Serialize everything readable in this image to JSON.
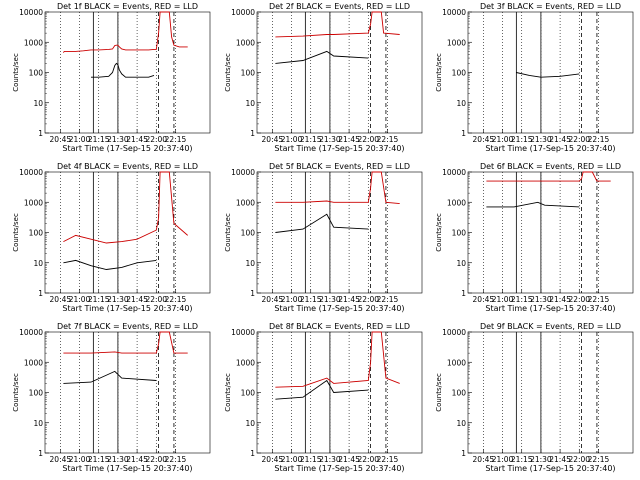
{
  "figure": {
    "xlabel": "Start Time (17-Sep-15 20:37:40)",
    "ylabel": "Counts/sec",
    "time_ticks": [
      "20:45",
      "21:00",
      "21:15",
      "21:30",
      "21:45",
      "22:00",
      "22:15"
    ],
    "y_ticks": [
      "1",
      "10",
      "100",
      "1000",
      "10000"
    ],
    "colors": {
      "events": "#000000",
      "lld": "#cc0000",
      "background": "#ffffff"
    }
  },
  "chart_data": [
    {
      "type": "line",
      "title": "Det 1f BLACK = Events, RED = LLD",
      "yscale": "log",
      "ylim": [
        1,
        10000
      ],
      "markers": {
        "E": 63,
        "F": 95,
        "S": 148,
        "E2": 168
      },
      "series": [
        {
          "values": [
            [
              24,
              450,
              null
            ],
            [
              25,
              500,
              null
            ],
            [
              40,
              500,
              null
            ],
            [
              50,
              520,
              null
            ],
            [
              60,
              560,
              70
            ],
            [
              70,
              560,
              70
            ],
            [
              83,
              580,
              75
            ],
            [
              88,
              600,
              100
            ],
            [
              91,
              780,
              170
            ],
            [
              93,
              800,
              200
            ],
            [
              95,
              800,
              180
            ],
            [
              97,
              700,
              120
            ],
            [
              100,
              600,
              90
            ],
            [
              105,
              560,
              70
            ],
            [
              120,
              560,
              70
            ],
            [
              135,
              560,
              70
            ],
            [
              142,
              580,
              80
            ],
            [
              145,
              580,
              null
            ],
            [
              148,
              2000,
              null
            ],
            [
              150,
              10000,
              null
            ],
            [
              162,
              10000,
              null
            ],
            [
              165,
              1500,
              null
            ],
            [
              168,
              800,
              null
            ],
            [
              175,
              700,
              null
            ],
            [
              186,
              700,
              null
            ]
          ]
        }
      ]
    },
    {
      "type": "line",
      "title": "Det 2f BLACK = Events, RED = LLD",
      "yscale": "log",
      "ylim": [
        1,
        10000
      ],
      "markers": {
        "E": 63,
        "F": 95,
        "S": 148,
        "E2": 168
      },
      "series": [
        {
          "values": [
            [
              24,
              1500,
              200
            ],
            [
              60,
              1600,
              250
            ],
            [
              91,
              1800,
              500
            ],
            [
              100,
              1800,
              350
            ],
            [
              145,
              2000,
              300
            ],
            [
              148,
              4000,
              null
            ],
            [
              150,
              10000,
              null
            ],
            [
              162,
              10000,
              null
            ],
            [
              165,
              2000,
              null
            ],
            [
              186,
              1800,
              null
            ]
          ]
        }
      ]
    },
    {
      "type": "line",
      "title": "Det 3f BLACK = Events, RED = LLD",
      "yscale": "log",
      "ylim": [
        1,
        10000
      ],
      "markers": {
        "E": 63,
        "F": 95,
        "S": 148,
        "E2": 168
      },
      "series": [
        {
          "values": [
            [
              63,
              null,
              100
            ],
            [
              80,
              null,
              80
            ],
            [
              95,
              null,
              70
            ],
            [
              120,
              null,
              75
            ],
            [
              145,
              null,
              90
            ]
          ]
        }
      ]
    },
    {
      "type": "line",
      "title": "Det 4f BLACK = Events, RED = LLD",
      "yscale": "log",
      "ylim": [
        1,
        10000
      ],
      "markers": {
        "E": 63,
        "F": 95,
        "S": 148,
        "E2": 168
      },
      "series": [
        {
          "values": [
            [
              24,
              50,
              10
            ],
            [
              40,
              80,
              12
            ],
            [
              60,
              60,
              8
            ],
            [
              80,
              45,
              6
            ],
            [
              100,
              50,
              7
            ],
            [
              120,
              60,
              10
            ],
            [
              145,
              120,
              12
            ],
            [
              148,
              300,
              null
            ],
            [
              150,
              10000,
              null
            ],
            [
              162,
              10000,
              null
            ],
            [
              168,
              200,
              null
            ],
            [
              186,
              80,
              null
            ]
          ]
        }
      ]
    },
    {
      "type": "line",
      "title": "Det 5f BLACK = Events, RED = LLD",
      "yscale": "log",
      "ylim": [
        1,
        10000
      ],
      "markers": {
        "E": 63,
        "F": 95,
        "S": 148,
        "E2": 168
      },
      "series": [
        {
          "values": [
            [
              24,
              1000,
              100
            ],
            [
              60,
              1000,
              130
            ],
            [
              91,
              1100,
              400
            ],
            [
              100,
              1000,
              150
            ],
            [
              145,
              1000,
              130
            ],
            [
              148,
              3000,
              null
            ],
            [
              150,
              10000,
              null
            ],
            [
              162,
              10000,
              null
            ],
            [
              168,
              1000,
              null
            ],
            [
              186,
              900,
              null
            ]
          ]
        }
      ]
    },
    {
      "type": "line",
      "title": "Det 6f BLACK = Events, RED = LLD",
      "yscale": "log",
      "ylim": [
        1,
        10000
      ],
      "markers": {
        "E": 63,
        "F": 95,
        "S": 148,
        "E2": 168
      },
      "series": [
        {
          "values": [
            [
              24,
              5000,
              700
            ],
            [
              60,
              5000,
              700
            ],
            [
              91,
              5000,
              1000
            ],
            [
              100,
              5000,
              800
            ],
            [
              145,
              5000,
              700
            ],
            [
              148,
              6000,
              null
            ],
            [
              150,
              10000,
              null
            ],
            [
              162,
              10000,
              null
            ],
            [
              168,
              5000,
              null
            ],
            [
              186,
              5000,
              null
            ]
          ]
        }
      ]
    },
    {
      "type": "line",
      "title": "Det 7f BLACK = Events, RED = LLD",
      "yscale": "log",
      "ylim": [
        1,
        10000
      ],
      "markers": {
        "E": 63,
        "F": 95,
        "S": 148,
        "E2": 168
      },
      "series": [
        {
          "values": [
            [
              24,
              2000,
              200
            ],
            [
              60,
              2000,
              220
            ],
            [
              91,
              2200,
              500
            ],
            [
              100,
              2000,
              300
            ],
            [
              145,
              2000,
              250
            ],
            [
              148,
              4000,
              null
            ],
            [
              150,
              10000,
              null
            ],
            [
              162,
              10000,
              null
            ],
            [
              168,
              2000,
              null
            ],
            [
              186,
              2000,
              null
            ]
          ]
        }
      ]
    },
    {
      "type": "line",
      "title": "Det 8f BLACK = Events, RED = LLD",
      "yscale": "log",
      "ylim": [
        1,
        10000
      ],
      "markers": {
        "E": 63,
        "F": 95,
        "S": 148,
        "E2": 168
      },
      "series": [
        {
          "values": [
            [
              24,
              150,
              60
            ],
            [
              60,
              160,
              70
            ],
            [
              91,
              300,
              250
            ],
            [
              100,
              200,
              100
            ],
            [
              145,
              250,
              120
            ],
            [
              148,
              1000,
              null
            ],
            [
              150,
              10000,
              null
            ],
            [
              162,
              10000,
              null
            ],
            [
              168,
              300,
              null
            ],
            [
              186,
              200,
              null
            ]
          ]
        }
      ]
    },
    {
      "type": "line",
      "title": "Det 9f BLACK = Events, RED = LLD",
      "yscale": "log",
      "ylim": [
        1,
        10000
      ],
      "markers": {
        "E": 63,
        "F": 95,
        "S": 148,
        "E2": 168
      },
      "series": []
    }
  ]
}
